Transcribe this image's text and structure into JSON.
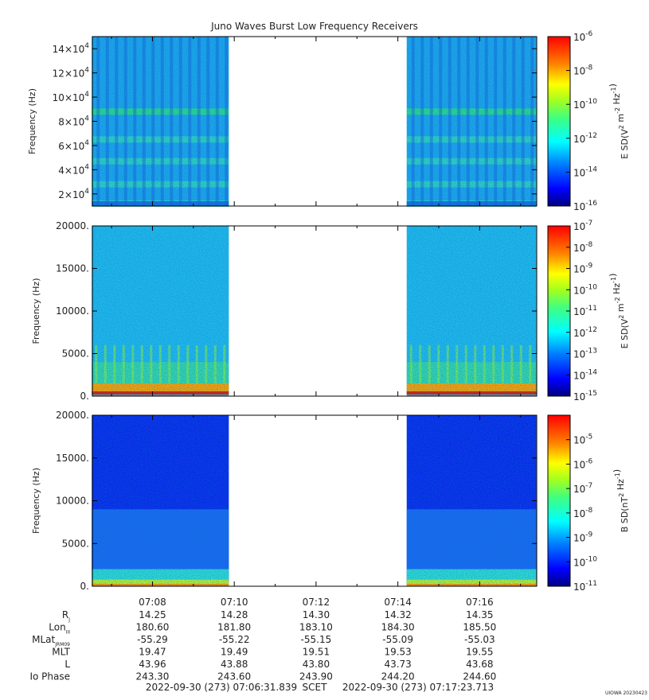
{
  "title": "Juno Waves Burst Low Frequency Receivers",
  "footer": {
    "start": "2022-09-30 (273) 07:06:31.839",
    "scet": "SCET",
    "end": "2022-09-30 (273) 07:17:23.713",
    "credit": "UIOWA 20230423"
  },
  "colors": {
    "scale": [
      "#00007f",
      "#0000ff",
      "#0080ff",
      "#00ffff",
      "#7fff7f",
      "#ffff00",
      "#ff8000",
      "#ff0000",
      "#7f0000"
    ],
    "gap": "#ffffff"
  },
  "chart_data": [
    {
      "type": "heatmap",
      "title": "Juno Waves Burst Low Frequency Receivers",
      "ylabel": "Frequency (Hz)",
      "colorbar_label": "E SD(V^2 m^-2 Hz^-1)",
      "ylim": [
        10000,
        150000
      ],
      "y_ticks": [
        {
          "value": 20000,
          "mant": "2",
          "exp": "4"
        },
        {
          "value": 40000,
          "mant": "4",
          "exp": "4"
        },
        {
          "value": 60000,
          "mant": "6",
          "exp": "4"
        },
        {
          "value": 80000,
          "mant": "8",
          "exp": "4"
        },
        {
          "value": 100000,
          "mant": "10",
          "exp": "4"
        },
        {
          "value": 120000,
          "mant": "12",
          "exp": "4"
        },
        {
          "value": 140000,
          "mant": "14",
          "exp": "4"
        }
      ],
      "color_range_exp": [
        -16,
        -6
      ],
      "colorbar_ticks": [
        "-16",
        "-14",
        "-12",
        "-10",
        "-8",
        "-6"
      ],
      "data_segments": [
        [
          "07:06:31",
          "07:09:52"
        ],
        [
          "07:14:13",
          "07:17:23"
        ]
      ],
      "features": {
        "horizontal_bands_hz": [
          12000,
          28000,
          47000,
          65000,
          88000
        ]
      }
    },
    {
      "type": "heatmap",
      "ylabel": "Frequency (Hz)",
      "colorbar_label": "E SD(V^2 m^-2 Hz^-1)",
      "ylim": [
        0,
        20000
      ],
      "y_ticks": [
        {
          "value": 0,
          "label": "0."
        },
        {
          "value": 5000,
          "label": "5000."
        },
        {
          "value": 10000,
          "label": "10000."
        },
        {
          "value": 15000,
          "label": "15000."
        },
        {
          "value": 20000,
          "label": "20000."
        }
      ],
      "color_range_exp": [
        -15,
        -7
      ],
      "colorbar_ticks": [
        "-15",
        "-14",
        "-13",
        "-12",
        "-11",
        "-10",
        "-9",
        "-8",
        "-7"
      ],
      "data_segments": [
        [
          "07:06:31",
          "07:09:52"
        ],
        [
          "07:14:13",
          "07:17:23"
        ]
      ],
      "features": {
        "intense_band_hz": [
          0,
          1500
        ]
      }
    },
    {
      "type": "heatmap",
      "ylabel": "Frequency (Hz)",
      "colorbar_label": "B SD(nT^2 Hz^-1)",
      "ylim": [
        0,
        20000
      ],
      "y_ticks": [
        {
          "value": 0,
          "label": "0."
        },
        {
          "value": 5000,
          "label": "5000."
        },
        {
          "value": 10000,
          "label": "10000."
        },
        {
          "value": 15000,
          "label": "15000."
        },
        {
          "value": 20000,
          "label": "20000."
        }
      ],
      "color_range_exp": [
        -11,
        -4
      ],
      "colorbar_ticks": [
        "-11",
        "-10",
        "-9",
        "-8",
        "-7",
        "-6",
        "-5"
      ],
      "data_segments": [
        [
          "07:06:31",
          "07:09:52"
        ],
        [
          "07:14:13",
          "07:17:23"
        ]
      ],
      "features": {
        "intense_band_hz": [
          0,
          800
        ]
      }
    }
  ],
  "x_axis": {
    "start_sec": 25591.839,
    "end_sec": 26243.713,
    "ticks": [
      {
        "label": "07:08",
        "sec": 25680
      },
      {
        "label": "07:10",
        "sec": 25800
      },
      {
        "label": "07:12",
        "sec": 25920
      },
      {
        "label": "07:14",
        "sec": 26040
      },
      {
        "label": "07:16",
        "sec": 26160
      }
    ],
    "minor_ticks_sec": [
      25620,
      25740,
      25860,
      25980,
      26100,
      26220
    ]
  },
  "ephemeris": [
    {
      "label": "R",
      "sub": "J",
      "values": [
        "14.25",
        "14.28",
        "14.30",
        "14.32",
        "14.35"
      ]
    },
    {
      "label": "Lon",
      "sub": "III",
      "values": [
        "180.60",
        "181.80",
        "183.10",
        "184.30",
        "185.50"
      ]
    },
    {
      "label": "MLat",
      "sub": "JRM09",
      "values": [
        "-55.29",
        "-55.22",
        "-55.15",
        "-55.09",
        "-55.03"
      ]
    },
    {
      "label": "MLT",
      "sub": "",
      "values": [
        "19.47",
        "19.49",
        "19.51",
        "19.53",
        "19.55"
      ]
    },
    {
      "label": "L",
      "sub": "",
      "values": [
        "43.96",
        "43.88",
        "43.80",
        "43.73",
        "43.68"
      ]
    },
    {
      "label": "Io Phase",
      "sub": "",
      "values": [
        "243.30",
        "243.60",
        "243.90",
        "244.20",
        "244.60"
      ]
    }
  ]
}
